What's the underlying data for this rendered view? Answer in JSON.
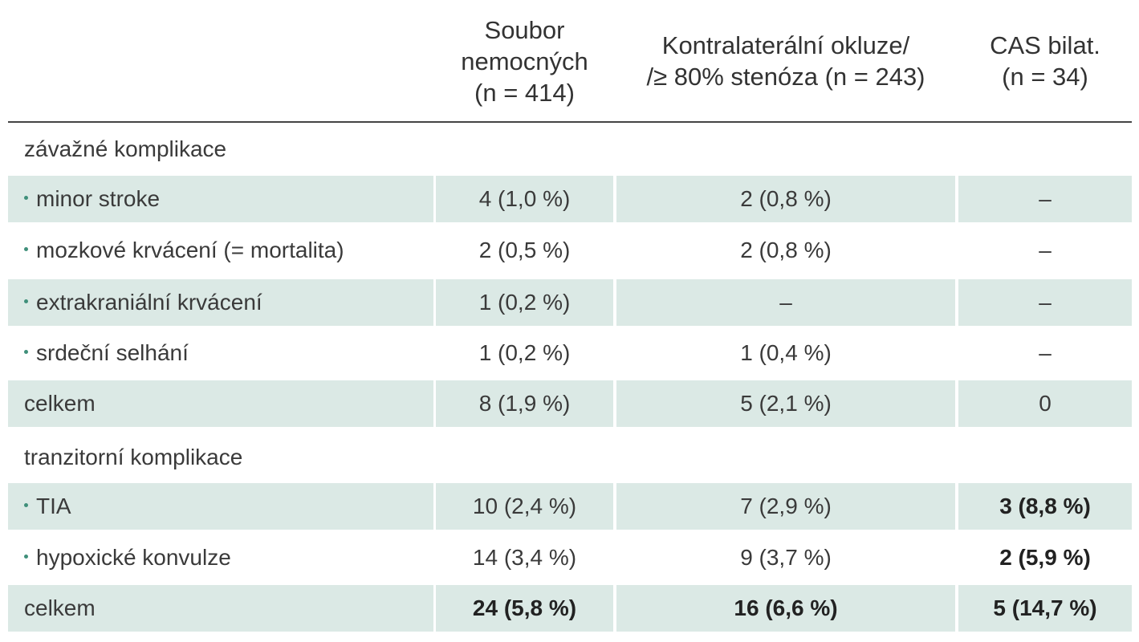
{
  "header": {
    "col1": [
      "Soubor",
      "nemocných",
      "(n = 414)"
    ],
    "col2": [
      "Kontralaterální okluze/",
      "/≥ 80% stenóza (n = 243)"
    ],
    "col3": [
      "CAS bilat.",
      "(n = 34)"
    ]
  },
  "rows": [
    {
      "type": "section",
      "label": "závažné komplikace"
    },
    {
      "type": "item",
      "label": "minor stroke",
      "v1": "4 (1,0 %)",
      "v2": "2 (0,8 %)",
      "v3": "–"
    },
    {
      "type": "item",
      "label": "mozkové krvácení (= mortalita)",
      "v1": "2 (0,5 %)",
      "v2": "2 (0,8 %)",
      "v3": "–"
    },
    {
      "type": "item",
      "label": "extrakraniální krvácení",
      "v1": "1 (0,2 %)",
      "v2": "–",
      "v3": "–"
    },
    {
      "type": "item",
      "label": "srdeční selhání",
      "v1": "1 (0,2 %)",
      "v2": "1 (0,4 %)",
      "v3": "–"
    },
    {
      "type": "total",
      "label": "celkem",
      "v1": "8 (1,9 %)",
      "v2": "5 (2,1 %)",
      "v3": "0"
    },
    {
      "type": "section",
      "label": "tranzitorní komplikace"
    },
    {
      "type": "item",
      "label": "TIA",
      "v1": "10 (2,4 %)",
      "v2": "7 (2,9 %)",
      "v3": "3 (8,8 %)"
    },
    {
      "type": "item",
      "label": "hypoxické konvulze",
      "v1": "14 (3,4 %)",
      "v2": "9 (3,7 %)",
      "v3": "2 (5,9 %)"
    },
    {
      "type": "total",
      "label": "celkem",
      "v1": "24 (5,8 %)",
      "v2": "16 (6,6 %)",
      "v3": "5 (14,7 %)"
    }
  ]
}
